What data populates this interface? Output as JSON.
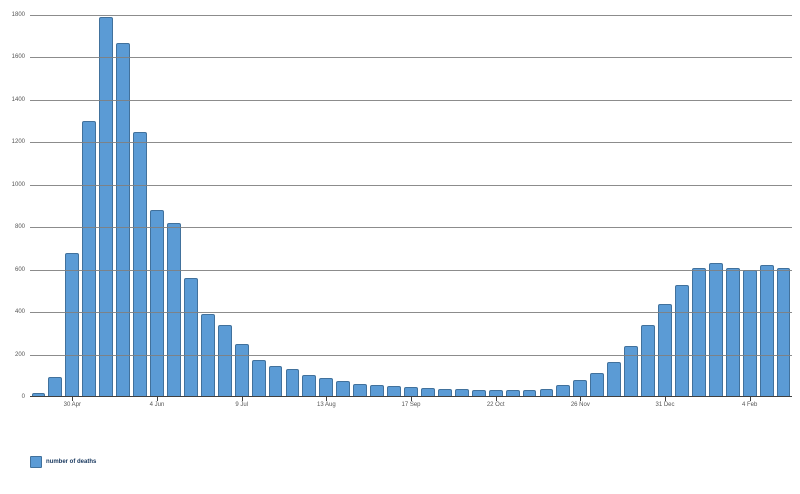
{
  "legend": {
    "label": "number of deaths"
  },
  "colors": {
    "bar_fill": "#5b9bd5",
    "bar_border": "#41719c",
    "gridline": "#808080",
    "axis": "#404040",
    "tick_label": "#555555",
    "background": "#ffffff"
  },
  "chart_data": {
    "type": "bar",
    "title": "",
    "xlabel": "",
    "ylabel": "",
    "series_name": "number of deaths",
    "ylim": [
      0,
      1800
    ],
    "ytick_step": 200,
    "grid": true,
    "legend_position": "bottom-left",
    "values": [
      20,
      95,
      680,
      1300,
      1790,
      1670,
      1250,
      880,
      820,
      560,
      390,
      340,
      250,
      175,
      145,
      130,
      105,
      90,
      75,
      62,
      55,
      50,
      45,
      42,
      40,
      38,
      35,
      33,
      32,
      35,
      40,
      55,
      80,
      115,
      165,
      240,
      340,
      440,
      530,
      610,
      630,
      610,
      600,
      620,
      610
    ],
    "xticks": [
      {
        "index": 2,
        "label": "30 Apr"
      },
      {
        "index": 7,
        "label": "4 Jun"
      },
      {
        "index": 12,
        "label": "9 Jul"
      },
      {
        "index": 17,
        "label": "13 Aug"
      },
      {
        "index": 22,
        "label": "17 Sep"
      },
      {
        "index": 27,
        "label": "22 Oct"
      },
      {
        "index": 32,
        "label": "26 Nov"
      },
      {
        "index": 37,
        "label": "31 Dec"
      },
      {
        "index": 42,
        "label": "4 Feb"
      }
    ]
  }
}
